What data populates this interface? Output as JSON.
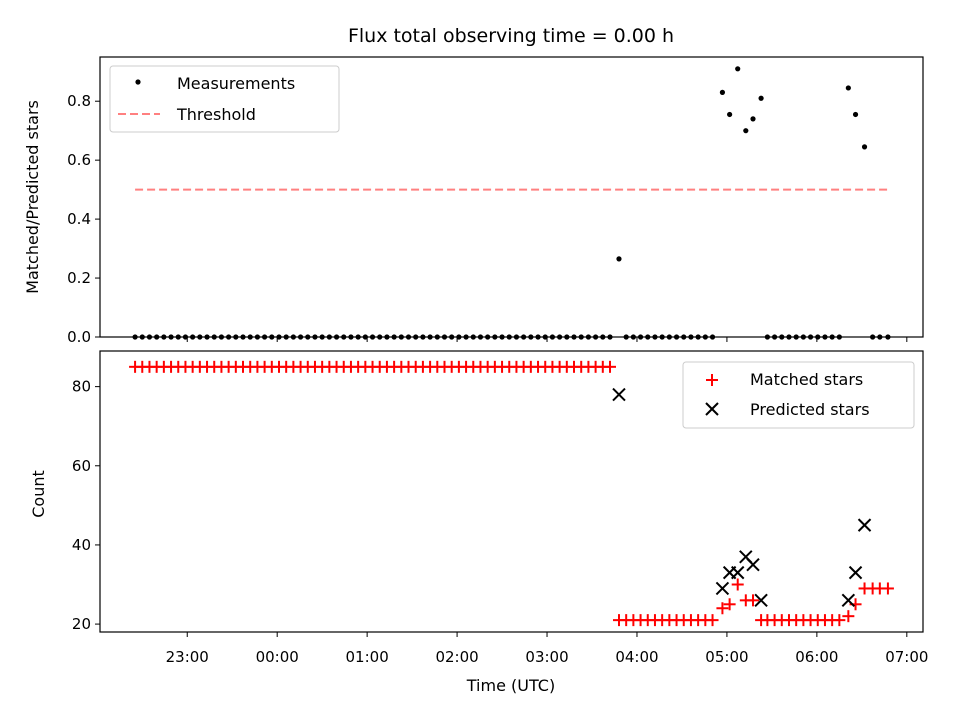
{
  "chart_data": {
    "title": "Flux total observing time = 0.00 h",
    "xlabel": "Time (UTC)",
    "x_tick_labels": [
      "23:00",
      "00:00",
      "01:00",
      "02:00",
      "03:00",
      "04:00",
      "05:00",
      "06:00",
      "07:00"
    ],
    "x_tick_hours": [
      23,
      24,
      25,
      26,
      27,
      28,
      29,
      30,
      31
    ],
    "xlim_hours": [
      22.03,
      31.18
    ],
    "colors": {
      "matched": "#ff0000",
      "predicted": "#000000",
      "threshold": "#ff8080",
      "measurement": "#000000"
    },
    "panels": [
      {
        "type": "scatter",
        "ylabel": "Matched/Predicted stars",
        "ylim": [
          0,
          0.95
        ],
        "y_ticks": [
          0.0,
          0.2,
          0.4,
          0.6,
          0.8
        ],
        "y_tick_labels": [
          "0.0",
          "0.2",
          "0.4",
          "0.6",
          "0.8"
        ],
        "legend_position": "upper-left",
        "series": [
          {
            "name": "Measurements",
            "kind": "points",
            "x_hours": [
              22.42,
              22.5,
              22.58,
              22.66,
              22.74,
              22.82,
              22.9,
              22.98,
              23.06,
              23.14,
              23.22,
              23.3,
              23.38,
              23.46,
              23.54,
              23.62,
              23.7,
              23.78,
              23.86,
              23.94,
              24.02,
              24.1,
              24.18,
              24.26,
              24.34,
              24.42,
              24.5,
              24.58,
              24.66,
              24.74,
              24.82,
              24.9,
              24.98,
              25.06,
              25.14,
              25.22,
              25.3,
              25.38,
              25.46,
              25.54,
              25.62,
              25.7,
              25.78,
              25.86,
              25.94,
              26.02,
              26.1,
              26.18,
              26.26,
              26.34,
              26.42,
              26.5,
              26.58,
              26.66,
              26.74,
              26.82,
              26.9,
              26.98,
              27.06,
              27.14,
              27.22,
              27.3,
              27.38,
              27.46,
              27.54,
              27.62,
              27.7,
              27.8,
              27.88,
              27.96,
              28.04,
              28.12,
              28.2,
              28.28,
              28.36,
              28.44,
              28.52,
              28.6,
              28.68,
              28.76,
              28.84,
              28.95,
              29.03,
              29.12,
              29.21,
              29.29,
              29.38,
              29.45,
              29.53,
              29.61,
              29.69,
              29.77,
              29.85,
              29.93,
              30.01,
              30.09,
              30.17,
              30.25,
              30.35,
              30.43,
              30.53,
              30.62,
              30.7,
              30.79
            ],
            "y": [
              0,
              0,
              0,
              0,
              0,
              0,
              0,
              0,
              0,
              0,
              0,
              0,
              0,
              0,
              0,
              0,
              0,
              0,
              0,
              0,
              0,
              0,
              0,
              0,
              0,
              0,
              0,
              0,
              0,
              0,
              0,
              0,
              0,
              0,
              0,
              0,
              0,
              0,
              0,
              0,
              0,
              0,
              0,
              0,
              0,
              0,
              0,
              0,
              0,
              0,
              0,
              0,
              0,
              0,
              0,
              0,
              0,
              0,
              0,
              0,
              0,
              0,
              0,
              0,
              0,
              0,
              0,
              0.265,
              0,
              0,
              0,
              0,
              0,
              0,
              0,
              0,
              0,
              0,
              0,
              0,
              0,
              0.83,
              0.755,
              0.91,
              0.7,
              0.74,
              0.81,
              0,
              0,
              0,
              0,
              0,
              0,
              0,
              0,
              0,
              0,
              0,
              0.845,
              0.755,
              0.645,
              0,
              0,
              0
            ]
          },
          {
            "name": "Threshold",
            "kind": "dashed-line",
            "x_hours": [
              22.42,
              30.79
            ],
            "y": [
              0.5,
              0.5
            ]
          }
        ]
      },
      {
        "type": "scatter",
        "ylabel": "Count",
        "ylim": [
          18,
          89
        ],
        "y_ticks": [
          20,
          40,
          60,
          80
        ],
        "y_tick_labels": [
          "20",
          "40",
          "60",
          "80"
        ],
        "legend_position": "upper-right",
        "series": [
          {
            "name": "Matched stars",
            "kind": "plus",
            "x_hours": [
              22.42,
              22.5,
              22.58,
              22.66,
              22.74,
              22.82,
              22.9,
              22.98,
              23.06,
              23.14,
              23.22,
              23.3,
              23.38,
              23.46,
              23.54,
              23.62,
              23.7,
              23.78,
              23.86,
              23.94,
              24.02,
              24.1,
              24.18,
              24.26,
              24.34,
              24.42,
              24.5,
              24.58,
              24.66,
              24.74,
              24.82,
              24.9,
              24.98,
              25.06,
              25.14,
              25.22,
              25.3,
              25.38,
              25.46,
              25.54,
              25.62,
              25.7,
              25.78,
              25.86,
              25.94,
              26.02,
              26.1,
              26.18,
              26.26,
              26.34,
              26.42,
              26.5,
              26.58,
              26.66,
              26.74,
              26.82,
              26.9,
              26.98,
              27.06,
              27.14,
              27.22,
              27.3,
              27.38,
              27.46,
              27.54,
              27.62,
              27.7,
              27.8,
              27.88,
              27.96,
              28.04,
              28.12,
              28.2,
              28.28,
              28.36,
              28.44,
              28.52,
              28.6,
              28.68,
              28.76,
              28.84,
              28.95,
              29.03,
              29.12,
              29.21,
              29.29,
              29.38,
              29.45,
              29.53,
              29.61,
              29.69,
              29.77,
              29.85,
              29.93,
              30.01,
              30.09,
              30.17,
              30.25,
              30.35,
              30.43,
              30.53,
              30.62,
              30.7,
              30.79
            ],
            "y": [
              85,
              85,
              85,
              85,
              85,
              85,
              85,
              85,
              85,
              85,
              85,
              85,
              85,
              85,
              85,
              85,
              85,
              85,
              85,
              85,
              85,
              85,
              85,
              85,
              85,
              85,
              85,
              85,
              85,
              85,
              85,
              85,
              85,
              85,
              85,
              85,
              85,
              85,
              85,
              85,
              85,
              85,
              85,
              85,
              85,
              85,
              85,
              85,
              85,
              85,
              85,
              85,
              85,
              85,
              85,
              85,
              85,
              85,
              85,
              85,
              85,
              85,
              85,
              85,
              85,
              85,
              85,
              21,
              21,
              21,
              21,
              21,
              21,
              21,
              21,
              21,
              21,
              21,
              21,
              21,
              21,
              24,
              25,
              30,
              26,
              26,
              21,
              21,
              21,
              21,
              21,
              21,
              21,
              21,
              21,
              21,
              21,
              21,
              22,
              25,
              29,
              29,
              29,
              29
            ]
          },
          {
            "name": "Predicted stars",
            "kind": "x",
            "x_hours": [
              27.8,
              28.95,
              29.03,
              29.12,
              29.21,
              29.29,
              29.38,
              30.35,
              30.43,
              30.53
            ],
            "y": [
              78,
              29,
              33,
              33,
              37,
              35,
              26,
              26,
              33,
              45
            ]
          }
        ]
      }
    ]
  }
}
